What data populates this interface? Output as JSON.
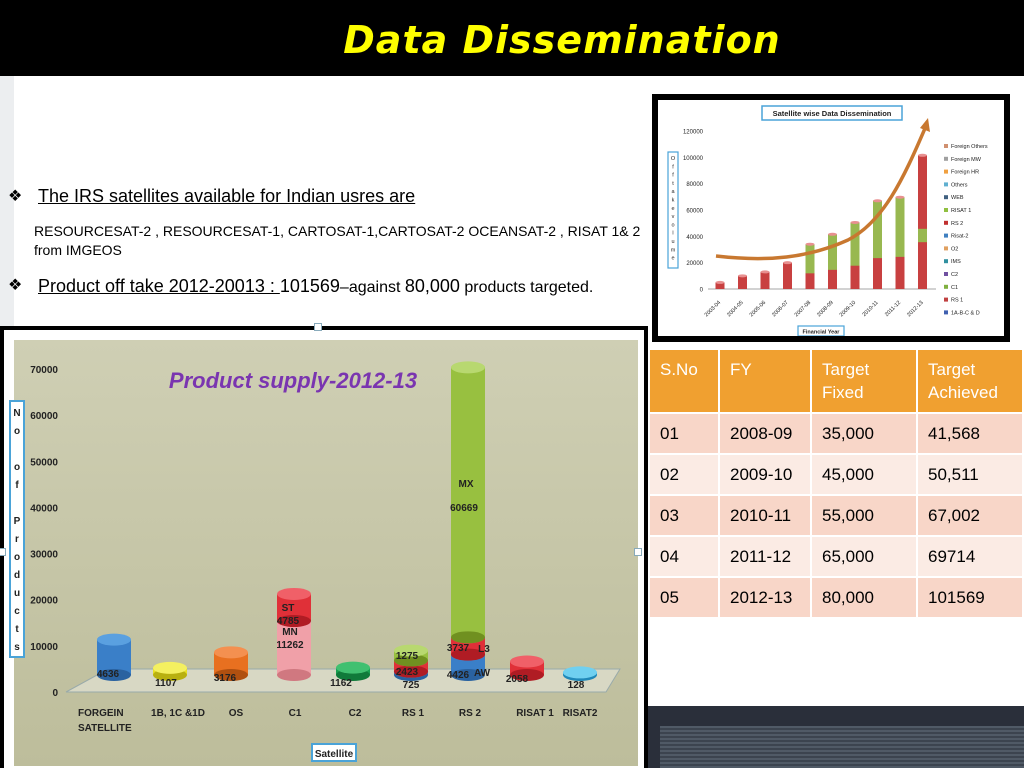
{
  "slide": {
    "title": "Data Dissemination",
    "bullet1": "The IRS satellites available for Indian usres are",
    "bullet1_detail": "RESOURCESAT-2 , RESOURCESAT-1, CARTOSAT-1,CARTOSAT-2 OCEANSAT-2 ,  RISAT 1& 2  from IMGEOS",
    "bullet2_label": "Product off take  2012-20013 : ",
    "bullet2_value": "101569",
    "bullet2_mid": "–against ",
    "bullet2_target": "80,000",
    "bullet2_end": " products targeted."
  },
  "colors": {
    "title": "#ffff00",
    "table_header": "#f0a030",
    "table_row_odd": "#f8d6c8",
    "table_row_even": "#fbebe4",
    "chart_title": "#7a35b0"
  },
  "table": {
    "headers": [
      "S.No",
      "FY",
      "Target Fixed",
      "Target Achieved"
    ],
    "rows": [
      [
        "01",
        "2008-09",
        "35,000",
        "41,568"
      ],
      [
        "02",
        "2009-10",
        "45,000",
        "50,511"
      ],
      [
        "03",
        "2010-11",
        "55,000",
        "67,002"
      ],
      [
        "04",
        "2011-12",
        "65,000",
        " 69714"
      ],
      [
        "05",
        "2012-13",
        "80,000",
        "101569"
      ]
    ]
  },
  "chart_data": [
    {
      "type": "bar",
      "title": "Product supply-2012-13",
      "xlabel": "Satellite",
      "ylabel": "No of Products",
      "ylim": [
        0,
        70000
      ],
      "yticks": [
        "0",
        "10000",
        "20000",
        "30000",
        "40000",
        "50000",
        "60000",
        "70000"
      ],
      "categories": [
        "FORGEIN SATELLITE",
        "1B, 1C &1D",
        "OS",
        "C1",
        "C2",
        "RS 1",
        "RS 2",
        "RISAT 1",
        "RISAT2"
      ],
      "segments": [
        {
          "category": "FORGEIN SATELLITE",
          "label": "4636",
          "value": 4636
        },
        {
          "category": "1B, 1C &1D",
          "label": "1107",
          "value": 1107
        },
        {
          "category": "OS",
          "label": "3176",
          "value": 3176
        },
        {
          "category": "C1",
          "label": "MN 11262",
          "value": 11262
        },
        {
          "category": "C1",
          "label": "ST 4785",
          "value": 4785
        },
        {
          "category": "C2",
          "label": "1162",
          "value": 1162
        },
        {
          "category": "RS 1",
          "label": "725",
          "value": 725
        },
        {
          "category": "RS 1",
          "label": "2423",
          "value": 2423
        },
        {
          "category": "RS 1",
          "label": "1275",
          "value": 1275
        },
        {
          "category": "RS 2",
          "label": "AW 4426",
          "value": 4426
        },
        {
          "category": "RS 2",
          "label": "L3 3737",
          "value": 3737
        },
        {
          "category": "RS 2",
          "label": "MX 60669",
          "value": 60669
        },
        {
          "category": "RISAT 1",
          "label": "2058",
          "value": 2058
        },
        {
          "category": "RISAT2",
          "label": "128",
          "value": 128
        }
      ]
    },
    {
      "type": "bar",
      "title": "Satellite wise Data Dissemination",
      "xlabel": "Financial Year",
      "ylabel": "Off take volume",
      "ylim": [
        0,
        120000
      ],
      "yticks": [
        "0",
        "20000",
        "40000",
        "60000",
        "80000",
        "100000",
        "120000"
      ],
      "categories": [
        "2003-04",
        "2004-05",
        "2005-06",
        "2006-07",
        "2007-08",
        "2008-09",
        "2009-10",
        "2010-11",
        "2011-12",
        "2012-13"
      ],
      "values": [
        5000,
        10000,
        13000,
        20000,
        34000,
        41568,
        50511,
        67002,
        69714,
        101569
      ],
      "legend": [
        "Foreign Others",
        "Foreign MW",
        "Foreign HR",
        "Others",
        "WEB",
        "RISAT 1",
        "RS 2",
        "Risat-2",
        "O2",
        "IMS",
        "C2",
        "C1",
        "RS 1",
        "1A-B-C & D"
      ]
    }
  ]
}
